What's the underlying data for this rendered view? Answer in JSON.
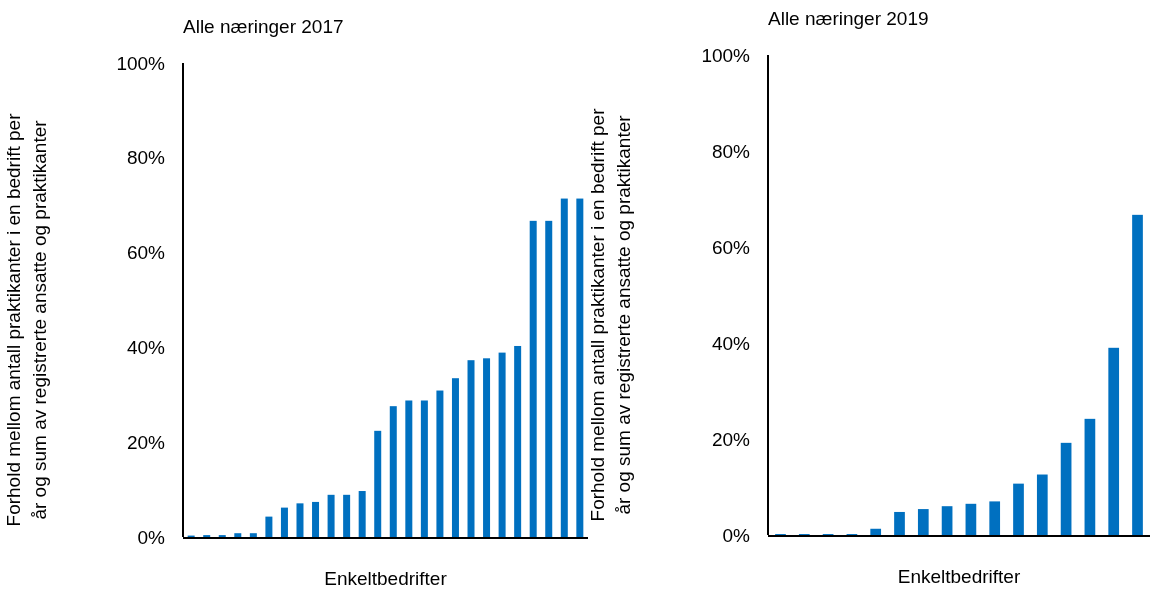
{
  "chart_data": [
    {
      "type": "bar",
      "title": "Alle næringer 2017",
      "xlabel": "Enkeltbedrifter",
      "ylabel": "Forhold mellom antall praktikanter i en bedrift per\når og sum av registrerte ansatte og praktikanter",
      "categories": [
        null,
        null,
        null,
        null,
        null,
        null,
        null,
        null,
        null,
        null,
        null,
        null,
        null,
        null,
        null,
        null,
        null,
        null,
        null,
        null,
        null,
        null,
        null,
        null,
        null,
        null
      ],
      "values": [
        0.3,
        0.4,
        0.4,
        0.8,
        0.8,
        4.3,
        6.2,
        7.1,
        7.4,
        8.9,
        8.9,
        9.7,
        22.4,
        27.6,
        28.8,
        28.8,
        30.9,
        33.5,
        37.3,
        37.7,
        38.9,
        40.3,
        66.7,
        66.7,
        71.4,
        71.4
      ],
      "color": "#0070c0",
      "ylim": [
        0,
        100
      ],
      "yticks": [
        {
          "value": 0,
          "label": "0%"
        },
        {
          "value": 20,
          "label": "20%"
        },
        {
          "value": 40,
          "label": "40%"
        },
        {
          "value": 60,
          "label": "60%"
        },
        {
          "value": 80,
          "label": "80%"
        },
        {
          "value": 100,
          "label": "100%"
        }
      ]
    },
    {
      "type": "bar",
      "title": "Alle næringer 2019",
      "xlabel": "Enkeltbedrifter",
      "ylabel": "Forhold mellom antall praktikanter i en bedrift per\når og sum av registrerte ansatte og praktikanter",
      "categories": [
        null,
        null,
        null,
        null,
        null,
        null,
        null,
        null,
        null,
        null,
        null,
        null,
        null,
        null,
        null,
        null
      ],
      "values": [
        0.2,
        0.2,
        0.2,
        0.2,
        1.3,
        4.8,
        5.4,
        6.0,
        6.5,
        7.0,
        10.7,
        12.6,
        19.2,
        24.2,
        39.0,
        66.7
      ],
      "color": "#0070c0",
      "ylim": [
        0,
        100
      ],
      "yticks": [
        {
          "value": 0,
          "label": "0%"
        },
        {
          "value": 20,
          "label": "20%"
        },
        {
          "value": 40,
          "label": "40%"
        },
        {
          "value": 60,
          "label": "60%"
        },
        {
          "value": 80,
          "label": "80%"
        },
        {
          "value": 100,
          "label": "100%"
        }
      ]
    }
  ]
}
